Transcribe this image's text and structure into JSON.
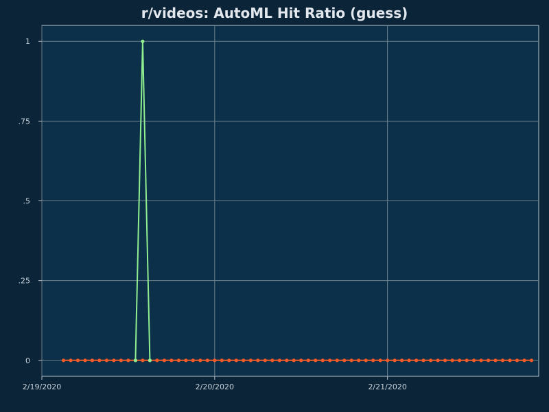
{
  "chart_data": {
    "type": "line",
    "title": "r/videos: AutoML Hit Ratio (guess)",
    "xlabel": "",
    "ylabel": "",
    "x_ticks": [
      "2/19/2020",
      "2/20/2020",
      "2/21/2020"
    ],
    "y_ticks": [
      "0",
      ".25",
      ".5",
      ".75",
      "1"
    ],
    "ylim": [
      -0.05,
      1.05
    ],
    "x_start": "2020-02-19T00:00",
    "x_end": "2020-02-21T21:00",
    "grid": true,
    "series": [
      {
        "color": "#f05a28",
        "x": [
          "2020-02-19T03:00",
          "2020-02-19T04:00",
          "2020-02-19T05:00",
          "2020-02-19T06:00",
          "2020-02-19T07:00",
          "2020-02-19T08:00",
          "2020-02-19T09:00",
          "2020-02-19T10:00",
          "2020-02-19T11:00",
          "2020-02-19T12:00",
          "2020-02-19T13:00",
          "2020-02-19T14:00",
          "2020-02-19T15:00",
          "2020-02-19T16:00",
          "2020-02-19T17:00",
          "2020-02-19T18:00",
          "2020-02-19T19:00",
          "2020-02-19T20:00",
          "2020-02-19T21:00",
          "2020-02-19T22:00",
          "2020-02-19T23:00",
          "2020-02-20T00:00",
          "2020-02-20T01:00",
          "2020-02-20T02:00",
          "2020-02-20T03:00",
          "2020-02-20T04:00",
          "2020-02-20T05:00",
          "2020-02-20T06:00",
          "2020-02-20T07:00",
          "2020-02-20T08:00",
          "2020-02-20T09:00",
          "2020-02-20T10:00",
          "2020-02-20T11:00",
          "2020-02-20T12:00",
          "2020-02-20T13:00",
          "2020-02-20T14:00",
          "2020-02-20T15:00",
          "2020-02-20T16:00",
          "2020-02-20T17:00",
          "2020-02-20T18:00",
          "2020-02-20T19:00",
          "2020-02-20T20:00",
          "2020-02-20T21:00",
          "2020-02-20T22:00",
          "2020-02-20T23:00",
          "2020-02-21T00:00",
          "2020-02-21T01:00",
          "2020-02-21T02:00",
          "2020-02-21T03:00",
          "2020-02-21T04:00",
          "2020-02-21T05:00",
          "2020-02-21T06:00",
          "2020-02-21T07:00",
          "2020-02-21T08:00",
          "2020-02-21T09:00",
          "2020-02-21T10:00",
          "2020-02-21T11:00",
          "2020-02-21T12:00",
          "2020-02-21T13:00",
          "2020-02-21T14:00",
          "2020-02-21T15:00",
          "2020-02-21T16:00",
          "2020-02-21T17:00",
          "2020-02-21T18:00",
          "2020-02-21T19:00",
          "2020-02-21T20:00"
        ],
        "y": [
          0,
          0,
          0,
          0,
          0,
          0,
          0,
          0,
          0,
          0,
          0,
          0,
          0,
          0,
          0,
          0,
          0,
          0,
          0,
          0,
          0,
          0,
          0,
          0,
          0,
          0,
          0,
          0,
          0,
          0,
          0,
          0,
          0,
          0,
          0,
          0,
          0,
          0,
          0,
          0,
          0,
          0,
          0,
          0,
          0,
          0,
          0,
          0,
          0,
          0,
          0,
          0,
          0,
          0,
          0,
          0,
          0,
          0,
          0,
          0,
          0,
          0,
          0,
          0,
          0,
          0
        ]
      },
      {
        "color": "#90ee90",
        "x": [
          "2020-02-19T13:00",
          "2020-02-19T14:00",
          "2020-02-19T15:00"
        ],
        "y": [
          0,
          1,
          0
        ]
      }
    ]
  }
}
